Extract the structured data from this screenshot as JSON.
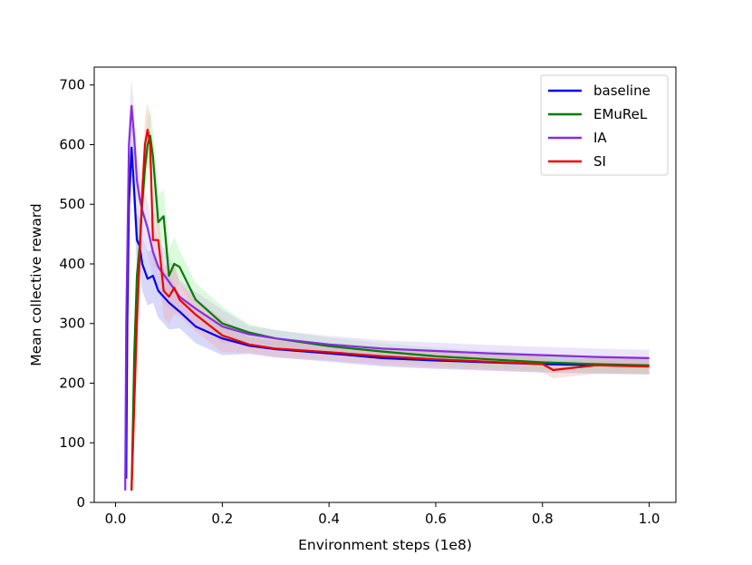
{
  "chart_data": {
    "type": "line",
    "xlabel": "Environment steps (1e8)",
    "ylabel": "Mean collective reward",
    "xlim": [
      -0.04,
      1.05
    ],
    "ylim": [
      0,
      730
    ],
    "xticks": [
      "0.0",
      "0.2",
      "0.4",
      "0.6",
      "0.8",
      "1.0"
    ],
    "yticks": [
      "0",
      "100",
      "200",
      "300",
      "400",
      "500",
      "600",
      "700"
    ],
    "grid": false,
    "legend_position": "top-right",
    "series": [
      {
        "name": "baseline",
        "color": "#0000ee",
        "band": "#8f8ff2",
        "x": [
          0.02,
          0.022,
          0.025,
          0.03,
          0.035,
          0.04,
          0.045,
          0.05,
          0.06,
          0.07,
          0.08,
          0.1,
          0.12,
          0.15,
          0.2,
          0.25,
          0.3,
          0.4,
          0.5,
          0.6,
          0.7,
          0.8,
          0.9,
          1.0
        ],
        "y": [
          40,
          300,
          500,
          595,
          520,
          440,
          430,
          400,
          375,
          380,
          355,
          335,
          320,
          295,
          275,
          263,
          257,
          250,
          242,
          238,
          235,
          232,
          230,
          229
        ]
      },
      {
        "name": "EMuReL",
        "color": "#007d00",
        "band": "#9cf09c",
        "x": [
          0.03,
          0.035,
          0.04,
          0.045,
          0.05,
          0.055,
          0.06,
          0.065,
          0.07,
          0.08,
          0.09,
          0.1,
          0.11,
          0.12,
          0.15,
          0.2,
          0.25,
          0.3,
          0.4,
          0.5,
          0.6,
          0.7,
          0.8,
          0.9,
          1.0
        ],
        "y": [
          20,
          250,
          380,
          430,
          500,
          560,
          600,
          615,
          580,
          470,
          480,
          380,
          400,
          395,
          340,
          300,
          285,
          275,
          262,
          253,
          245,
          240,
          235,
          232,
          230
        ]
      },
      {
        "name": "IA",
        "color": "#8a2be2",
        "band": "#c9b2ee",
        "x": [
          0.018,
          0.02,
          0.025,
          0.03,
          0.035,
          0.04,
          0.045,
          0.05,
          0.06,
          0.07,
          0.08,
          0.1,
          0.12,
          0.15,
          0.2,
          0.25,
          0.3,
          0.4,
          0.5,
          0.6,
          0.7,
          0.8,
          0.9,
          1.0
        ],
        "y": [
          20,
          300,
          600,
          665,
          610,
          540,
          510,
          490,
          460,
          420,
          395,
          370,
          345,
          325,
          295,
          282,
          275,
          265,
          258,
          254,
          250,
          247,
          244,
          242
        ]
      },
      {
        "name": "SI",
        "color": "#ee0000",
        "band": "#f4a8a8",
        "x": [
          0.03,
          0.04,
          0.05,
          0.055,
          0.06,
          0.065,
          0.07,
          0.08,
          0.085,
          0.09,
          0.1,
          0.11,
          0.12,
          0.15,
          0.2,
          0.25,
          0.3,
          0.4,
          0.5,
          0.6,
          0.7,
          0.8,
          0.82,
          0.9,
          1.0
        ],
        "y": [
          20,
          300,
          520,
          600,
          625,
          600,
          440,
          440,
          400,
          355,
          345,
          360,
          340,
          315,
          280,
          265,
          258,
          252,
          245,
          240,
          236,
          232,
          222,
          230,
          228
        ]
      }
    ]
  }
}
